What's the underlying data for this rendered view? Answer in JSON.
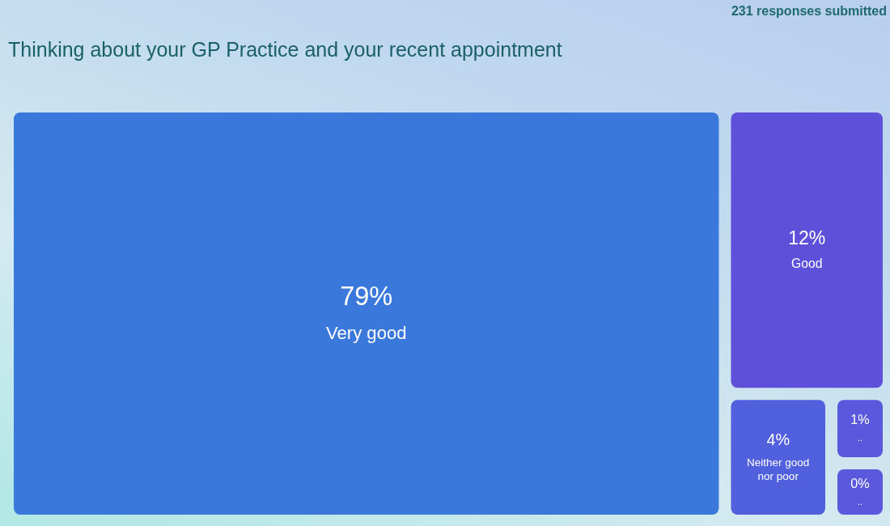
{
  "chart_data": {
    "type": "other",
    "title": "Thinking about your GP Practice and your recent appointment",
    "annotations": [
      "231 responses submitted"
    ],
    "categories": [
      "Very good",
      "Good",
      "Neither good nor poor",
      "..",
      ".."
    ],
    "values": [
      79,
      12,
      4,
      1,
      0
    ],
    "value_labels": [
      "79%",
      "12%",
      "4%",
      "1%",
      "0%"
    ],
    "colors": [
      "#3a78dc",
      "#5f50da",
      "#5160dc",
      "#5a58dc",
      "#5a58dc"
    ]
  }
}
